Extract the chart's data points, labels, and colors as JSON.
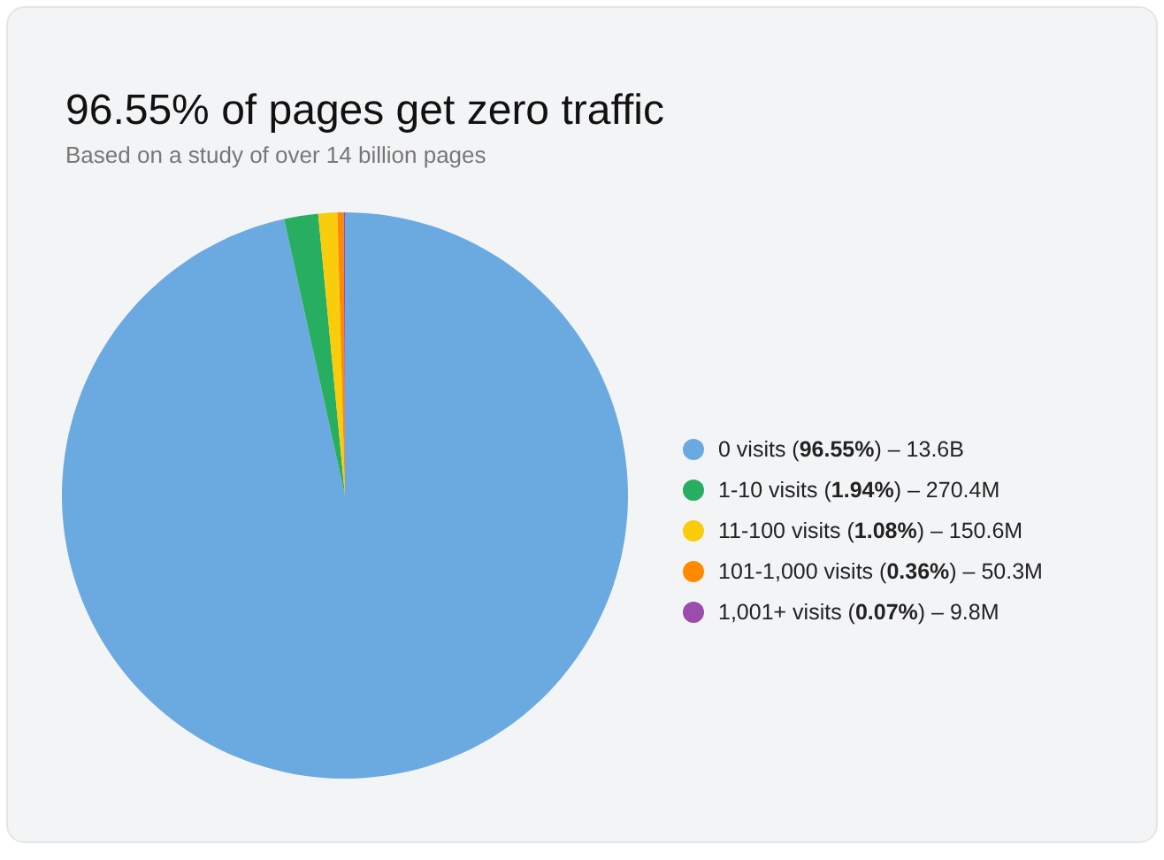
{
  "chart_data": {
    "type": "pie",
    "title": "96.55% of pages get zero traffic",
    "subtitle": "Based on a study of over 14 billion pages",
    "categories": [
      "0 visits (96.55%) – 13.6B",
      "1-10 visits (1.94%) – 270.4M",
      "11-100 visits (1.08%) – 150.6M",
      "101-1,000 visits (0.36%) – 50.3M",
      "1,001+ visits (0.07%) – 9.8M"
    ],
    "values": [
      96.55,
      1.94,
      1.08,
      0.36,
      0.07
    ],
    "colors": [
      "#6aaae0",
      "#27ae60",
      "#f9cd0b",
      "#ff8a00",
      "#9b4dab"
    ],
    "legend": "right"
  }
}
